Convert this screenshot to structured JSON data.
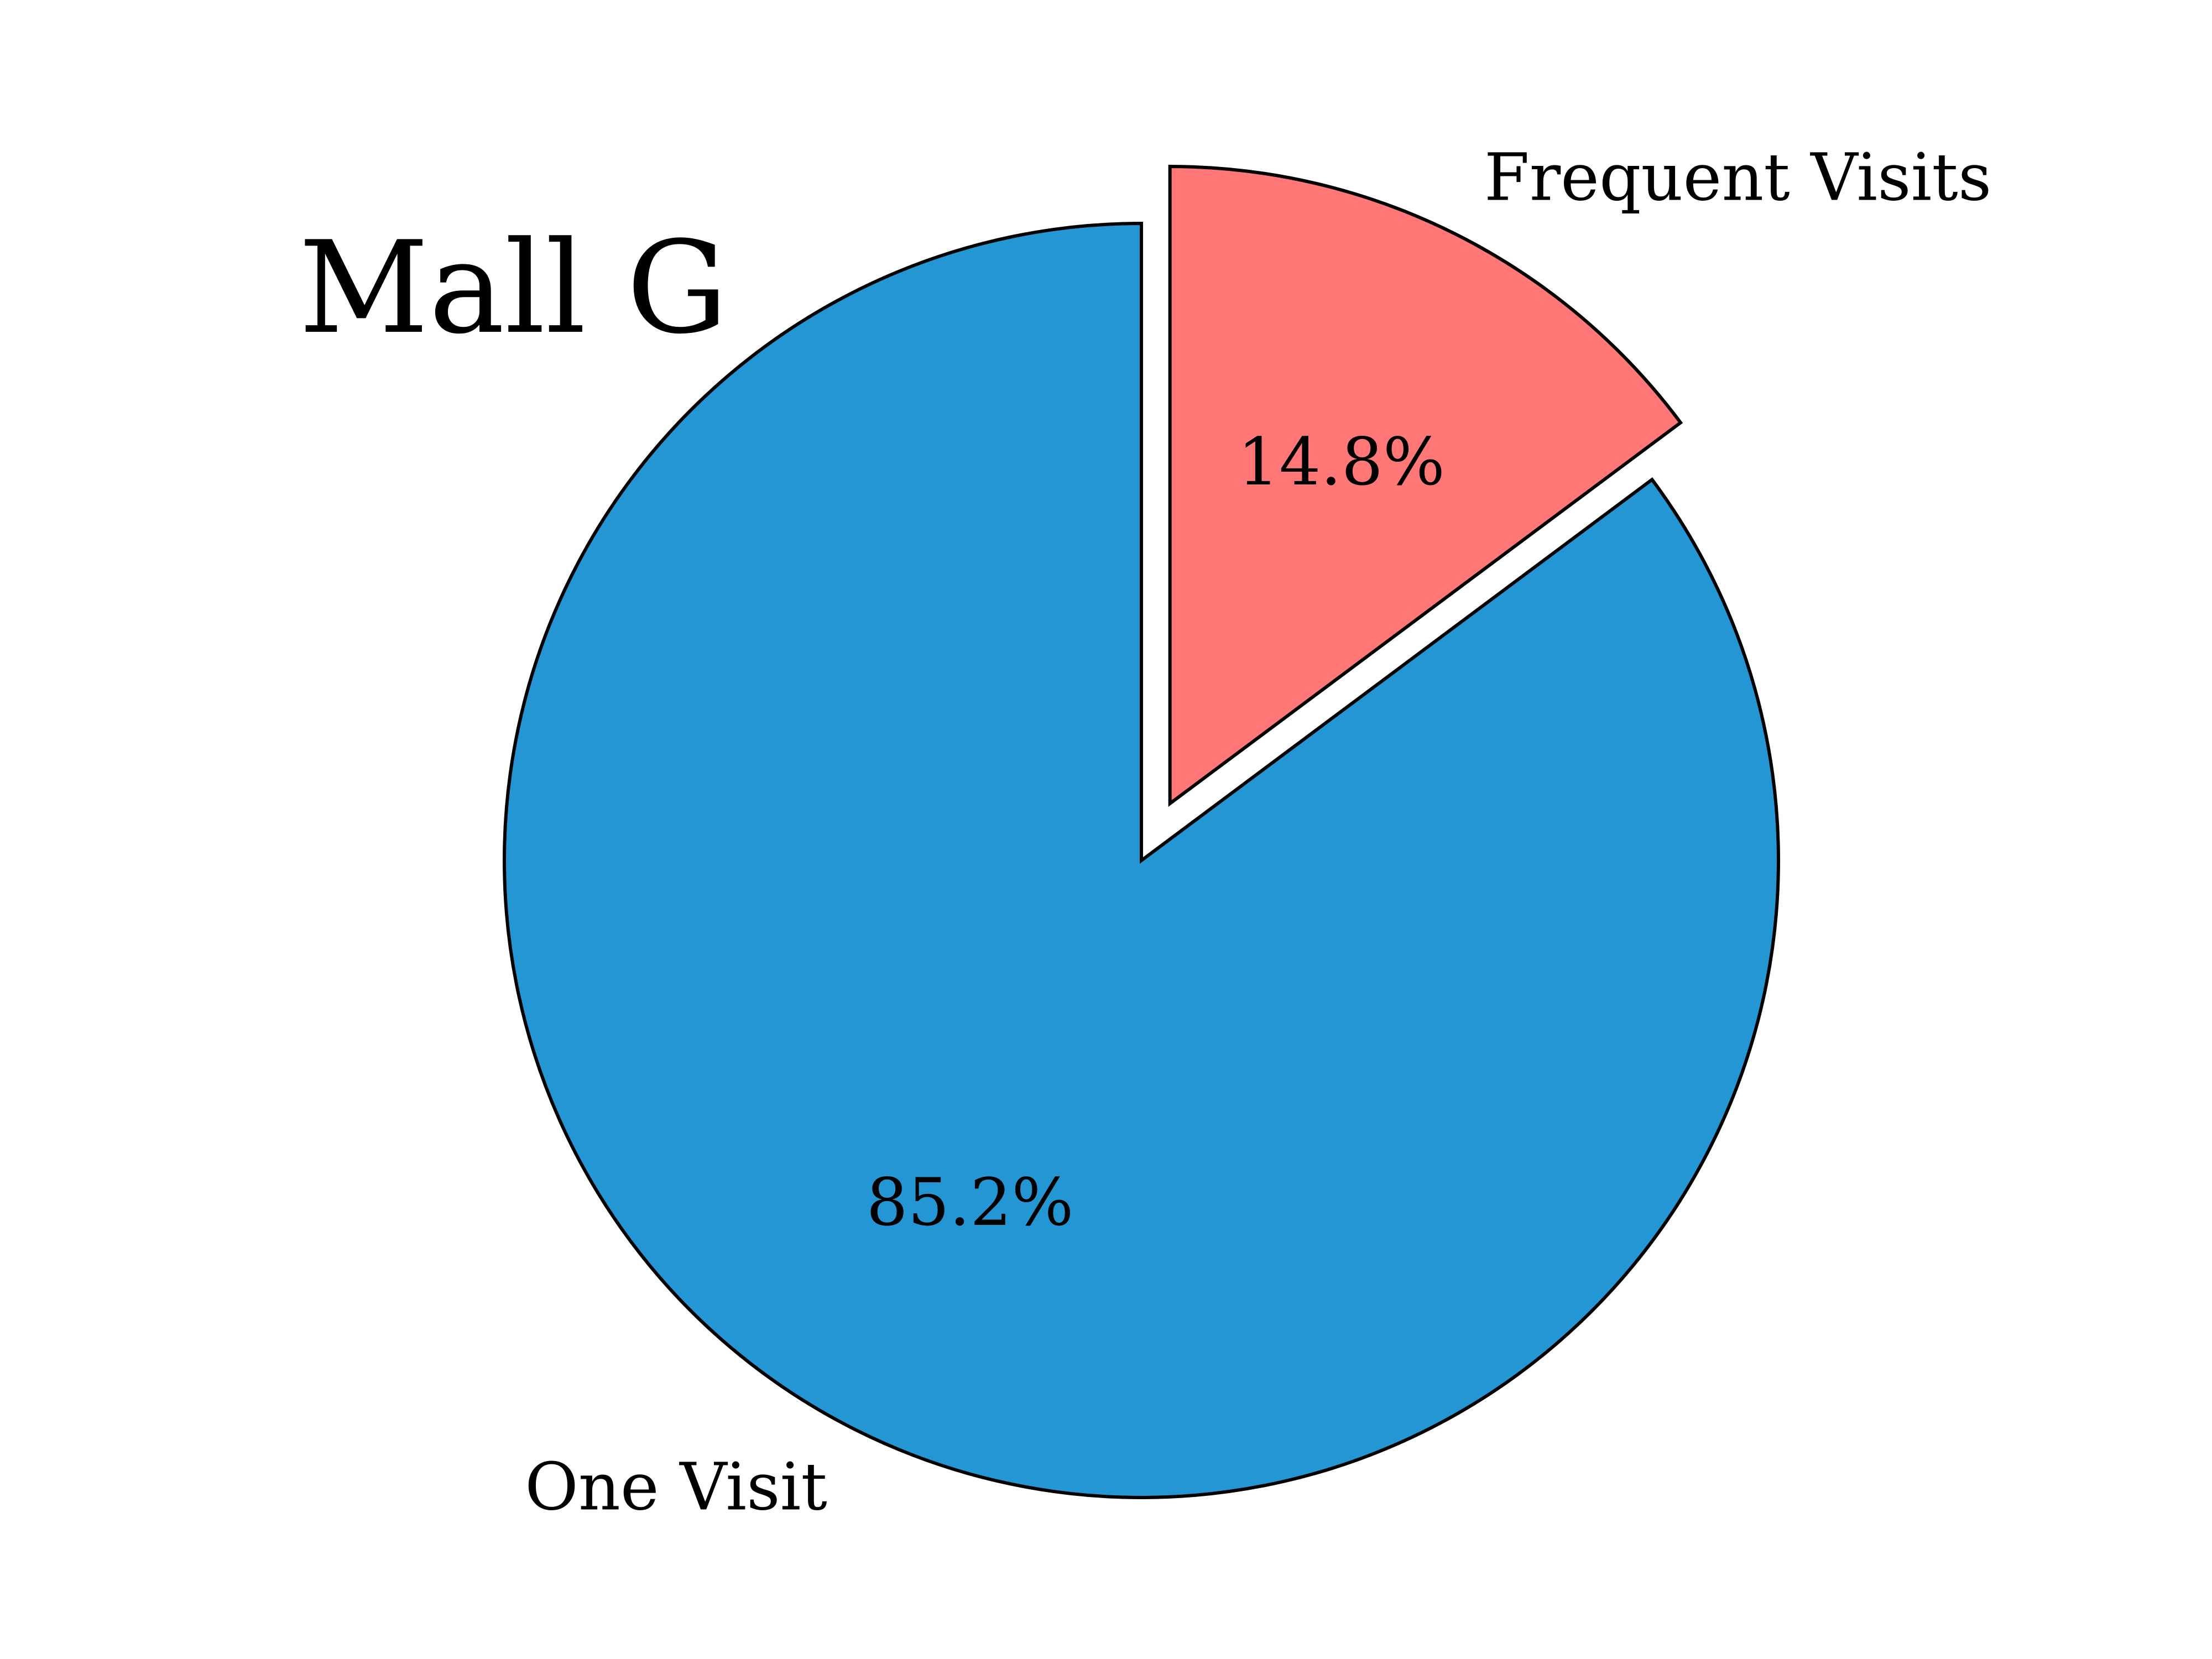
{
  "chart_data": {
    "type": "pie",
    "title": "Mall G",
    "slices": [
      {
        "label": "Frequent Visits",
        "value": 14.8,
        "value_label": "14.8%",
        "color": "#ff7777",
        "exploded": true
      },
      {
        "label": "One Visit",
        "value": 85.2,
        "value_label": "85.2%",
        "color": "#2596d4",
        "exploded": false
      }
    ],
    "start": "top, clockwise",
    "edge_color": "#000000",
    "background": "#ffffff"
  }
}
